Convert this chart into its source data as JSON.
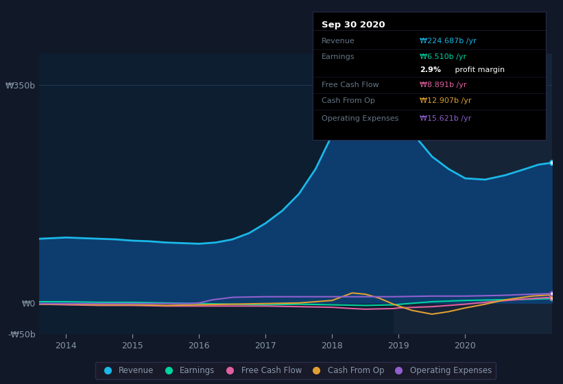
{
  "background_color": "#111827",
  "chart_bg_color": "#0d1e30",
  "grid_color": "#1e3a55",
  "ylabel_color": "#8899aa",
  "xlabel_color": "#8899aa",
  "highlight_bg": "#162438",
  "ylim": [
    -50,
    400
  ],
  "yticks": [
    -50,
    0,
    350
  ],
  "ytick_labels": [
    "-₩50b",
    "₩0",
    "₩350b"
  ],
  "xlim_min": 2013.6,
  "xlim_max": 2021.3,
  "xticks": [
    2014,
    2015,
    2016,
    2017,
    2018,
    2019,
    2020
  ],
  "highlight_start": 2018.92,
  "highlight_end": 2021.3,
  "series": {
    "revenue": {
      "color": "#1ab8e8",
      "fill_color": "#0d3d6e",
      "label": "Revenue",
      "x": [
        2013.6,
        2014.0,
        2014.25,
        2014.5,
        2014.75,
        2015.0,
        2015.25,
        2015.5,
        2015.75,
        2016.0,
        2016.25,
        2016.5,
        2016.75,
        2017.0,
        2017.25,
        2017.5,
        2017.75,
        2018.0,
        2018.15,
        2018.3,
        2018.5,
        2018.7,
        2018.92,
        2019.15,
        2019.5,
        2019.75,
        2020.0,
        2020.3,
        2020.6,
        2020.9,
        2021.1,
        2021.3
      ],
      "y": [
        103,
        105,
        104,
        103,
        102,
        100,
        99,
        97,
        96,
        95,
        97,
        102,
        112,
        128,
        148,
        175,
        215,
        270,
        310,
        345,
        355,
        350,
        330,
        280,
        235,
        215,
        200,
        198,
        205,
        215,
        222,
        225
      ]
    },
    "earnings": {
      "color": "#00d4a0",
      "label": "Earnings",
      "x": [
        2013.6,
        2014.0,
        2014.5,
        2015.0,
        2015.5,
        2016.0,
        2016.5,
        2017.0,
        2017.5,
        2018.0,
        2018.5,
        2018.92,
        2019.5,
        2020.0,
        2020.5,
        2021.0,
        2021.3
      ],
      "y": [
        2,
        2,
        1,
        1,
        0,
        -1,
        -2,
        -3,
        -2,
        -3,
        -4,
        -3,
        2,
        4,
        5,
        6,
        7
      ]
    },
    "free_cash_flow": {
      "color": "#e060a0",
      "label": "Free Cash Flow",
      "x": [
        2013.6,
        2014.0,
        2014.5,
        2015.0,
        2015.5,
        2016.0,
        2016.5,
        2017.0,
        2017.5,
        2018.0,
        2018.3,
        2018.5,
        2018.92,
        2019.0,
        2019.5,
        2020.0,
        2020.5,
        2021.0,
        2021.3
      ],
      "y": [
        -2,
        -3,
        -4,
        -4,
        -5,
        -5,
        -5,
        -5,
        -6,
        -7,
        -9,
        -10,
        -9,
        -8,
        -6,
        -2,
        3,
        7,
        9
      ]
    },
    "cash_from_op": {
      "color": "#e0a030",
      "label": "Cash From Op",
      "x": [
        2013.6,
        2014.0,
        2014.5,
        2015.0,
        2015.5,
        2016.0,
        2016.5,
        2017.0,
        2017.5,
        2018.0,
        2018.15,
        2018.3,
        2018.5,
        2018.7,
        2018.92,
        2019.2,
        2019.5,
        2019.75,
        2020.0,
        2020.3,
        2020.6,
        2021.0,
        2021.3
      ],
      "y": [
        -2,
        -2,
        -3,
        -3,
        -4,
        -3,
        -2,
        -1,
        0,
        4,
        10,
        16,
        14,
        8,
        -2,
        -12,
        -18,
        -14,
        -8,
        -2,
        5,
        11,
        13
      ]
    },
    "operating_expenses": {
      "color": "#9060d0",
      "label": "Operating Expenses",
      "x": [
        2013.6,
        2014.0,
        2014.5,
        2015.0,
        2015.5,
        2015.8,
        2016.0,
        2016.2,
        2016.5,
        2017.0,
        2017.5,
        2018.0,
        2018.5,
        2018.92,
        2019.5,
        2020.0,
        2020.5,
        2021.0,
        2021.3
      ],
      "y": [
        -1,
        -1,
        -1,
        -1,
        -1,
        -1,
        0,
        5,
        9,
        10,
        10,
        10,
        10,
        10,
        11,
        11,
        12,
        14,
        15
      ]
    }
  },
  "infobox": {
    "title": "Sep 30 2020",
    "bg_color": "#000000",
    "border_color": "#2a2a4a",
    "rows": [
      {
        "label": "Revenue",
        "label_color": "#667788",
        "value": "₩224.687b /yr",
        "value_color": "#1ab8e8"
      },
      {
        "label": "Earnings",
        "label_color": "#667788",
        "value": "₩6.510b /yr",
        "value_color": "#00d4a0"
      },
      {
        "label": "",
        "label_color": "",
        "value": "2.9% profit margin",
        "value_color": "#ffffff"
      },
      {
        "label": "Free Cash Flow",
        "label_color": "#667788",
        "value": "₩8.891b /yr",
        "value_color": "#e060a0"
      },
      {
        "label": "Cash From Op",
        "label_color": "#667788",
        "value": "₩12.907b /yr",
        "value_color": "#e0a030"
      },
      {
        "label": "Operating Expenses",
        "label_color": "#667788",
        "value": "₩15.621b /yr",
        "value_color": "#9060d0"
      }
    ]
  },
  "legend": [
    {
      "label": "Revenue",
      "color": "#1ab8e8"
    },
    {
      "label": "Earnings",
      "color": "#00d4a0"
    },
    {
      "label": "Free Cash Flow",
      "color": "#e060a0"
    },
    {
      "label": "Cash From Op",
      "color": "#e0a030"
    },
    {
      "label": "Operating Expenses",
      "color": "#9060d0"
    }
  ]
}
